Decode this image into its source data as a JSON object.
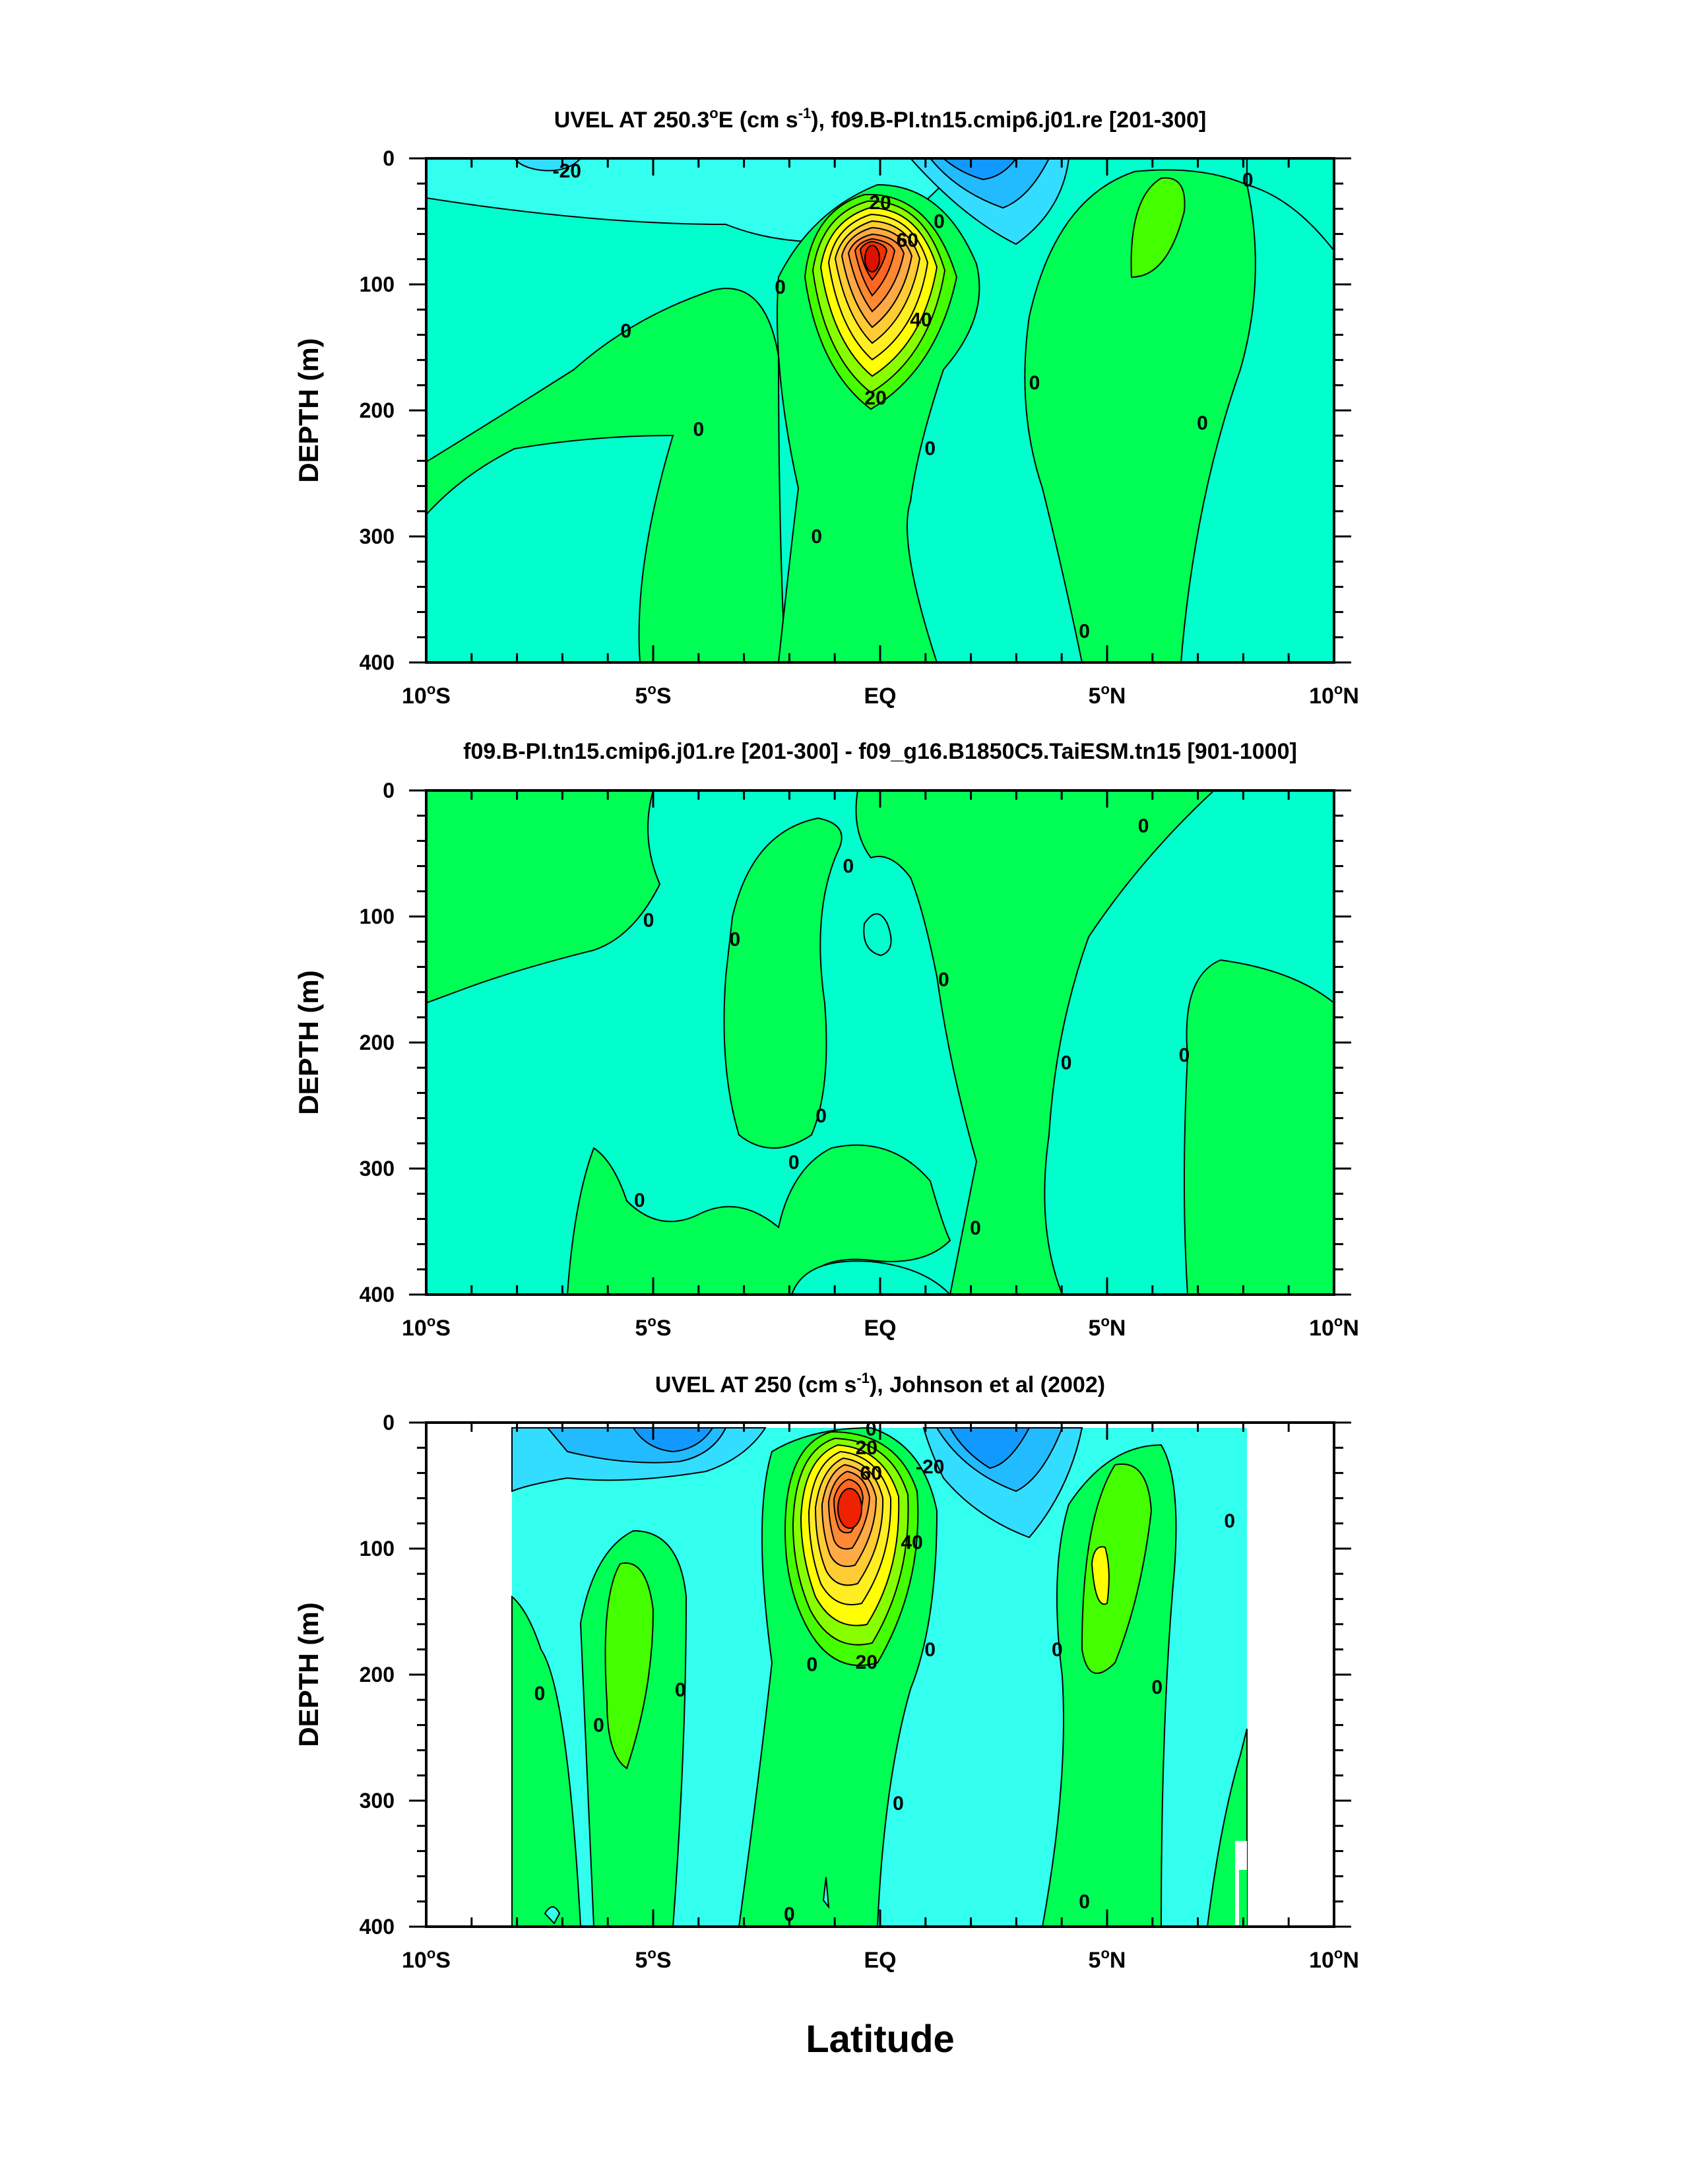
{
  "figure": {
    "xlabel": "Latitude",
    "colors": {
      "cyan_light": "#00ffcc",
      "cyan": "#33ffee",
      "sky": "#33ddff",
      "blue": "#1199ff",
      "green": "#00ff55",
      "lime": "#44ff00",
      "yellow": "#ffff00",
      "yellow_orange": "#ffdd33",
      "orange": "#ffaa33",
      "orange_dark": "#ff7722",
      "red": "#ee2200"
    }
  },
  "chart_data": [
    {
      "type": "heatmap",
      "title_parts": [
        "UVEL AT 250.3",
        "o",
        "E (cm s",
        "-1",
        "), f09.B-PI.tn15.cmip6.j01.re [201-300]"
      ],
      "ylabel": "DEPTH (m)",
      "xlim": [
        -10,
        10
      ],
      "ylim": [
        0,
        400
      ],
      "y_inverted": true,
      "yticks": [
        "0",
        "100",
        "200",
        "300",
        "400"
      ],
      "xticks": [
        {
          "value": -10,
          "num": "10",
          "hemi": "S"
        },
        {
          "value": -5,
          "num": "5",
          "hemi": "S"
        },
        {
          "value": 0,
          "num": "EQ",
          "hemi": ""
        },
        {
          "value": 5,
          "num": "5",
          "hemi": "N"
        },
        {
          "value": 10,
          "num": "10",
          "hemi": "N"
        }
      ],
      "contour_interval": 10,
      "features": [
        {
          "kind": "jet",
          "name": "Equatorial Undercurrent",
          "lat": -0.1,
          "depth": 85,
          "max_value": 90,
          "lat_halfwidth": 1.5,
          "depth_halfwidth_up": 55,
          "depth_halfwidth_down": 110
        },
        {
          "kind": "westward",
          "lat": 1.8,
          "depth": 10,
          "min_value": -30
        },
        {
          "kind": "eastward",
          "lat": 5.8,
          "depth": 60,
          "max_value": 10
        }
      ],
      "contour_labels": [
        {
          "text": "-20",
          "lat": -6.9,
          "depth": 10
        },
        {
          "text": "20",
          "lat": 0.0,
          "depth": 35
        },
        {
          "text": "0",
          "lat": 1.3,
          "depth": 50
        },
        {
          "text": "60",
          "lat": 0.6,
          "depth": 65
        },
        {
          "text": "0",
          "lat": -2.2,
          "depth": 102
        },
        {
          "text": "40",
          "lat": 0.9,
          "depth": 128
        },
        {
          "text": "0",
          "lat": -5.6,
          "depth": 137
        },
        {
          "text": "0",
          "lat": 3.4,
          "depth": 178
        },
        {
          "text": "20",
          "lat": -0.1,
          "depth": 190
        },
        {
          "text": "0",
          "lat": -4.0,
          "depth": 215
        },
        {
          "text": "0",
          "lat": 7.1,
          "depth": 210
        },
        {
          "text": "0",
          "lat": 1.1,
          "depth": 230
        },
        {
          "text": "0",
          "lat": 8.1,
          "depth": 17
        },
        {
          "text": "0",
          "lat": -1.4,
          "depth": 300
        },
        {
          "text": "0",
          "lat": 4.5,
          "depth": 375
        }
      ]
    },
    {
      "type": "heatmap",
      "title_parts": [
        "f09.B-PI.tn15.cmip6.j01.re [201-300] - f09_g16.B1850C5.TaiESM.tn15 [901-1000]"
      ],
      "ylabel": "DEPTH (m)",
      "xlim": [
        -10,
        10
      ],
      "ylim": [
        0,
        400
      ],
      "y_inverted": true,
      "yticks": [
        "0",
        "100",
        "200",
        "300",
        "400"
      ],
      "xticks": [
        {
          "value": -10,
          "num": "10",
          "hemi": "S"
        },
        {
          "value": -5,
          "num": "5",
          "hemi": "S"
        },
        {
          "value": 0,
          "num": "EQ",
          "hemi": ""
        },
        {
          "value": 5,
          "num": "5",
          "hemi": "N"
        },
        {
          "value": 10,
          "num": "10",
          "hemi": "N"
        }
      ],
      "contour_interval": 10,
      "color_levels": [
        "0 to 10",
        "-10 to 0"
      ],
      "contour_labels": [
        {
          "text": "0",
          "lat": 5.8,
          "depth": 28
        },
        {
          "text": "0",
          "lat": -0.7,
          "depth": 60
        },
        {
          "text": "0",
          "lat": -5.1,
          "depth": 103
        },
        {
          "text": "0",
          "lat": -3.2,
          "depth": 118
        },
        {
          "text": "0",
          "lat": 1.4,
          "depth": 150
        },
        {
          "text": "0",
          "lat": 4.1,
          "depth": 216
        },
        {
          "text": "0",
          "lat": 6.7,
          "depth": 210
        },
        {
          "text": "0",
          "lat": -1.3,
          "depth": 258
        },
        {
          "text": "0",
          "lat": -1.9,
          "depth": 295
        },
        {
          "text": "0",
          "lat": -5.3,
          "depth": 325
        },
        {
          "text": "0",
          "lat": 2.1,
          "depth": 347
        }
      ]
    },
    {
      "type": "heatmap",
      "title_parts": [
        "UVEL AT 250 (cm s",
        "-1",
        "), Johnson et al (2002)"
      ],
      "ylabel": "DEPTH (m)",
      "xlim": [
        -10,
        10
      ],
      "ylim": [
        0,
        400
      ],
      "y_inverted": true,
      "data_lat_range": [
        -8,
        8
      ],
      "yticks": [
        "0",
        "100",
        "200",
        "300",
        "400"
      ],
      "xticks": [
        {
          "value": -10,
          "num": "10",
          "hemi": "S"
        },
        {
          "value": -5,
          "num": "5",
          "hemi": "S"
        },
        {
          "value": 0,
          "num": "EQ",
          "hemi": ""
        },
        {
          "value": 5,
          "num": "5",
          "hemi": "N"
        },
        {
          "value": 10,
          "num": "10",
          "hemi": "N"
        }
      ],
      "contour_interval": 10,
      "features": [
        {
          "kind": "jet",
          "name": "Equatorial Undercurrent",
          "lat": -0.2,
          "depth": 70,
          "max_value": 90,
          "lat_halfwidth": 1.4,
          "depth_halfwidth_up": 45,
          "depth_halfwidth_down": 110
        },
        {
          "kind": "westward",
          "lat": 2.3,
          "depth": 10,
          "min_value": -30
        },
        {
          "kind": "westward",
          "lat": -4.0,
          "depth": 10,
          "min_value": -20
        },
        {
          "kind": "eastward",
          "lat": -5.3,
          "depth": 170,
          "max_value": 10
        },
        {
          "kind": "eastward",
          "lat": 5.0,
          "depth": 140,
          "max_value": 20
        }
      ],
      "contour_labels": [
        {
          "text": "0",
          "lat": -0.2,
          "depth": 5
        },
        {
          "text": "20",
          "lat": -0.3,
          "depth": 20
        },
        {
          "text": "-20",
          "lat": 1.1,
          "depth": 35
        },
        {
          "text": "60",
          "lat": -0.2,
          "depth": 40
        },
        {
          "text": "40",
          "lat": 0.7,
          "depth": 95
        },
        {
          "text": "0",
          "lat": 7.7,
          "depth": 78
        },
        {
          "text": "0",
          "lat": 3.9,
          "depth": 180
        },
        {
          "text": "0",
          "lat": 1.1,
          "depth": 180
        },
        {
          "text": "0",
          "lat": -1.5,
          "depth": 192
        },
        {
          "text": "20",
          "lat": -0.3,
          "depth": 190
        },
        {
          "text": "0",
          "lat": -7.5,
          "depth": 215
        },
        {
          "text": "0",
          "lat": -4.4,
          "depth": 212
        },
        {
          "text": "0",
          "lat": 6.1,
          "depth": 210
        },
        {
          "text": "0",
          "lat": -6.2,
          "depth": 240
        },
        {
          "text": "0",
          "lat": 0.4,
          "depth": 302
        },
        {
          "text": "0",
          "lat": 4.5,
          "depth": 380
        },
        {
          "text": "0",
          "lat": -2.0,
          "depth": 390
        }
      ]
    }
  ]
}
